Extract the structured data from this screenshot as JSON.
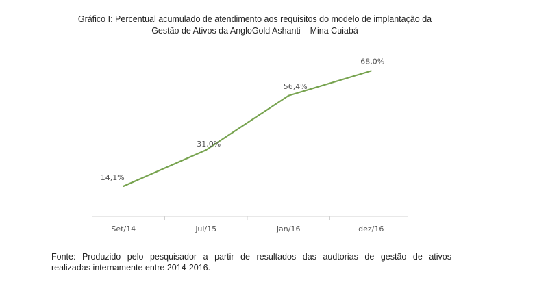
{
  "chart_data": {
    "type": "line",
    "title": "Gráfico I: Percentual acumulado de atendimento aos requisitos do modelo de implantação da Gestão de Ativos da AngloGold Ashanti – Mina Cuiabá",
    "title_lines": [
      "Gráfico I: Percentual acumulado de atendimento aos requisitos do modelo de implantação da",
      "Gestão de Ativos da AngloGold Ashanti – Mina Cuiabá"
    ],
    "categories": [
      "Set/14",
      "jul/15",
      "jan/16",
      "dez/16"
    ],
    "series": [
      {
        "name": "Percentual acumulado",
        "values": [
          14.1,
          31.0,
          56.4,
          68.0
        ],
        "color": "#77a34f"
      }
    ],
    "data_labels": [
      "14,1%",
      "31,0%",
      "56,4%",
      "68,0%"
    ],
    "xlabel": "",
    "ylabel": "",
    "ylim": [
      0,
      72
    ],
    "grid": false,
    "legend": "none"
  },
  "source": {
    "line1": "Fonte: Produzido pelo pesquisador a partir de resultados das audtorias de gestão de ativos",
    "line2": "realizadas internamente entre 2014-2016."
  }
}
